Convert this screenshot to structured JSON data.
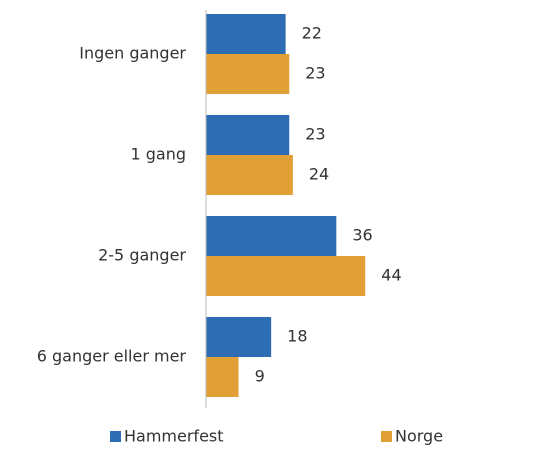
{
  "chart_data": {
    "type": "hbar",
    "categories": [
      "Ingen ganger",
      "1 gang",
      "2-5 ganger",
      "6 ganger eller mer"
    ],
    "series": [
      {
        "name": "Hammerfest",
        "color": "#2e6db4",
        "values": [
          22,
          23,
          36,
          18
        ]
      },
      {
        "name": "Norge",
        "color": "#e0a035",
        "values": [
          23,
          24,
          44,
          9
        ]
      }
    ],
    "xlim": [
      0,
      50
    ],
    "legend": "bottom"
  }
}
